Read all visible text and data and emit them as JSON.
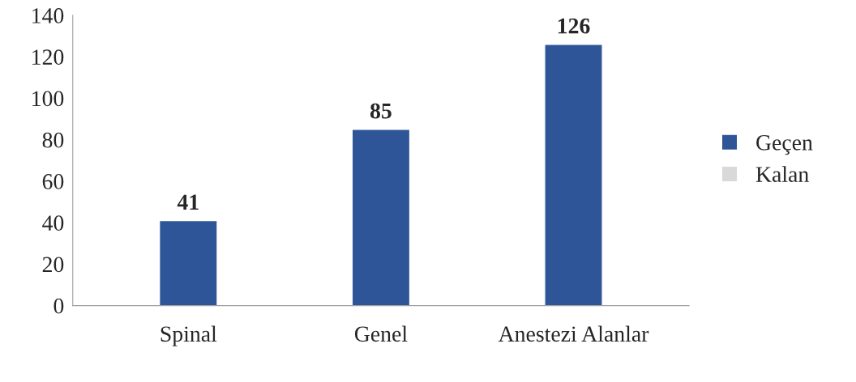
{
  "chart_data": {
    "type": "bar",
    "categories": [
      "Spinal",
      "Genel",
      "Anestezi Alanlar"
    ],
    "series": [
      {
        "name": "Kalan",
        "color": "#d9d9d9",
        "values": [
          null,
          null,
          null
        ]
      },
      {
        "name": "Geçen",
        "color": "#2e5597",
        "values": [
          41,
          85,
          126
        ]
      }
    ],
    "stacked": true,
    "ylim": [
      0,
      140
    ],
    "yticks": [
      0,
      20,
      40,
      60,
      80,
      100,
      120,
      140
    ],
    "grid": false,
    "legend": "right",
    "data_labels": true
  }
}
